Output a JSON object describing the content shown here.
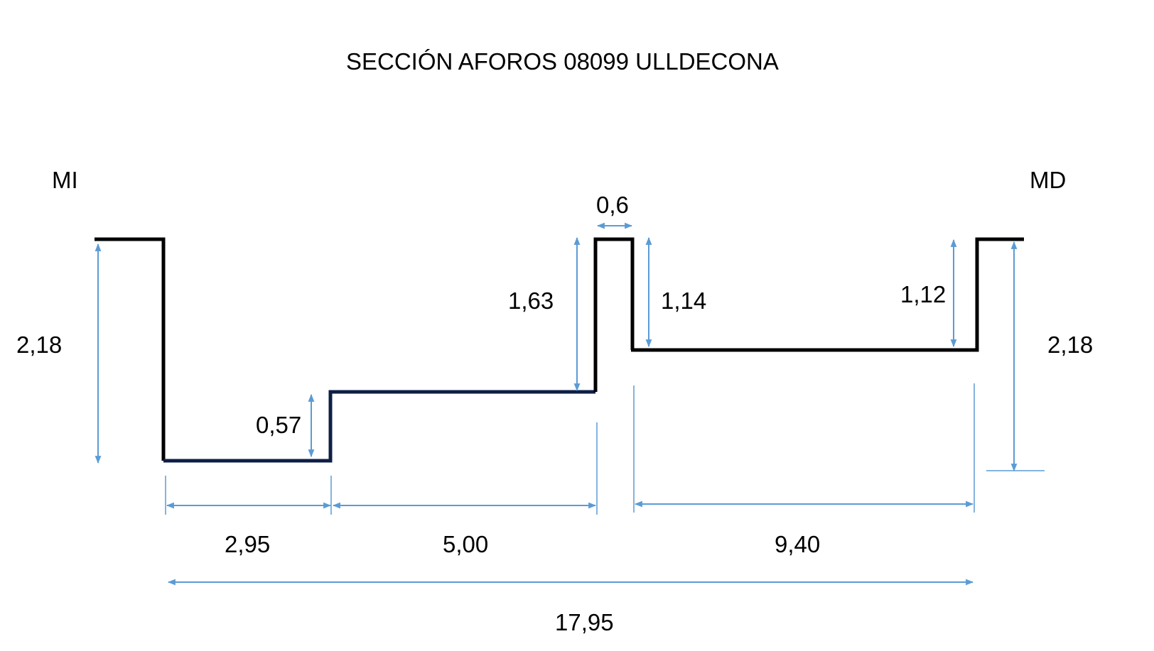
{
  "title": "SECCIÓN AFOROS 08099 ULLDECONA",
  "left_bank": "MI",
  "right_bank": "MD",
  "colors": {
    "profile": "#000000",
    "profile_step": "#0d1f45",
    "dimension": "#5b9bd5",
    "text": "#000000"
  },
  "dimensions": {
    "left_height": "2,18",
    "step1_height": "0,57",
    "step2_height": "1,63",
    "pier_width": "0,6",
    "pier_right_height": "1,14",
    "right_step_height": "1,12",
    "right_height": "2,18",
    "width_1": "2,95",
    "width_2": "5,00",
    "width_3": "9,40",
    "total_width": "17,95"
  }
}
